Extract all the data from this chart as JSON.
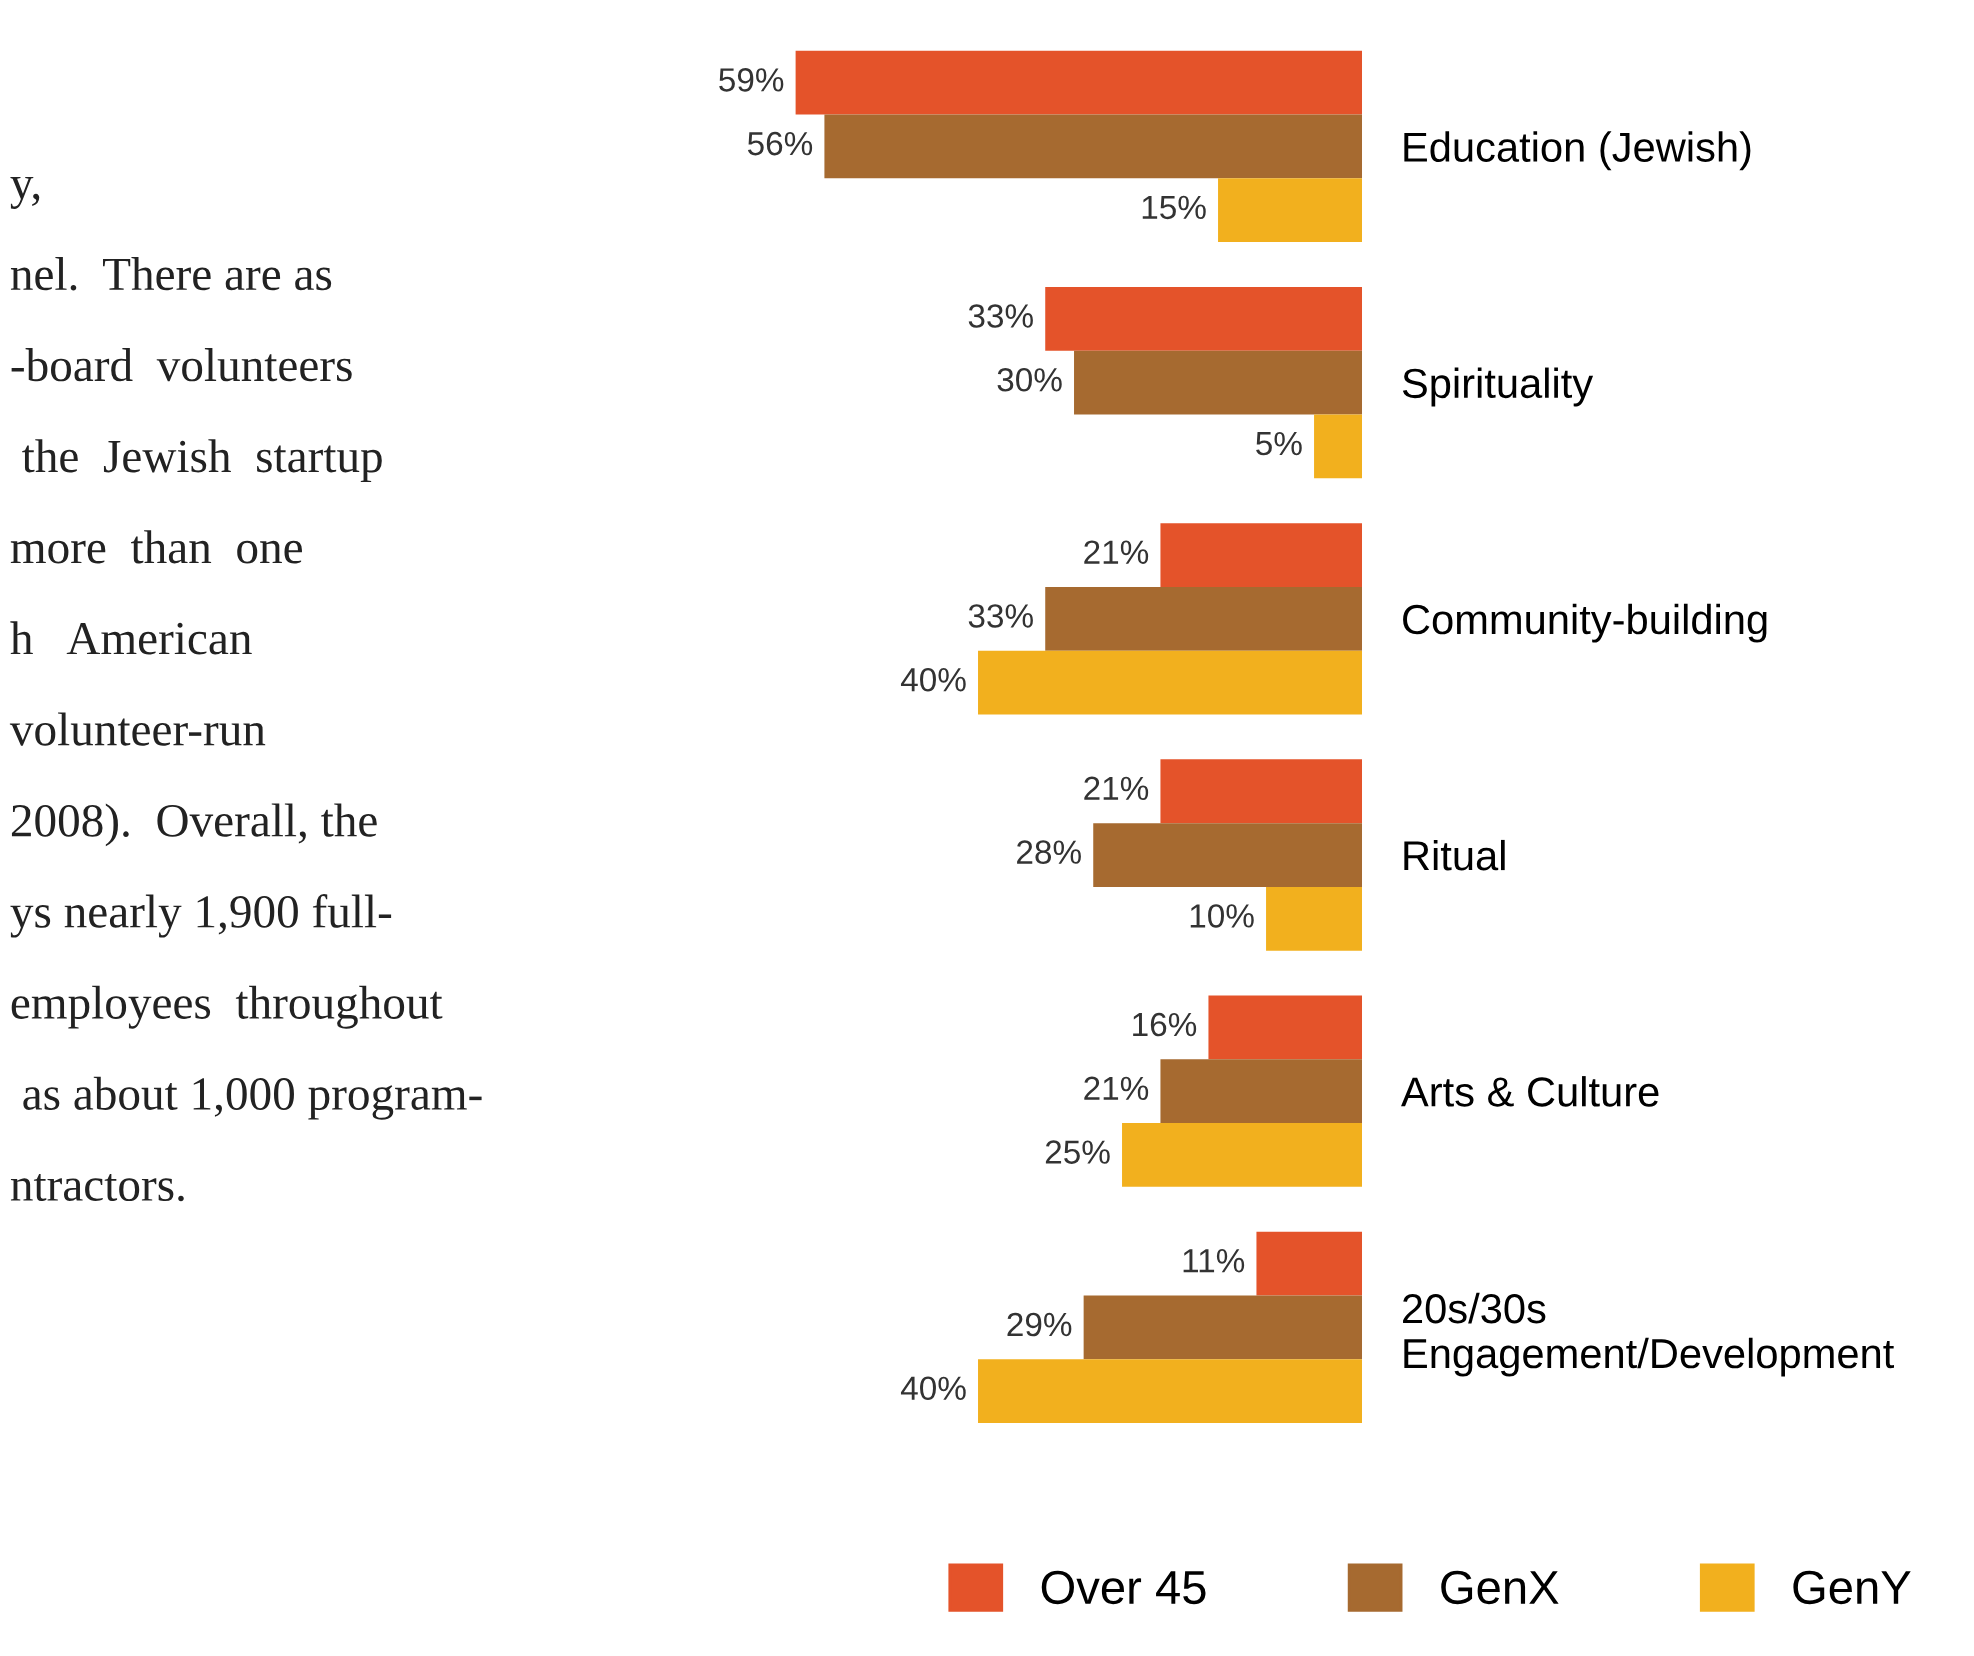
{
  "chart_data": {
    "type": "bar",
    "orientation": "horizontal",
    "legend": "bottom",
    "grid": false,
    "categories": [
      "Education (Jewish)",
      "Spirituality",
      "Community-building",
      "Ritual",
      "Arts & Culture",
      "20s/30s\nEngagement/Development"
    ],
    "series": [
      {
        "name": "Over 45",
        "color": "#e4532a",
        "values": [
          59,
          33,
          21,
          21,
          16,
          11
        ],
        "value_labels": [
          "59%",
          "33%",
          "21%",
          "21%",
          "16%",
          "11%"
        ]
      },
      {
        "name": "GenX",
        "color": "#a66a30",
        "values": [
          56,
          30,
          33,
          28,
          21,
          29
        ],
        "value_labels": [
          "56%",
          "30%",
          "33%",
          "28%",
          "21%",
          "29%"
        ]
      },
      {
        "name": "GenY",
        "color": "#f2b01e",
        "values": [
          15,
          5,
          40,
          10,
          25,
          40
        ],
        "value_labels": [
          "15%",
          "5%",
          "40%",
          "10%",
          "25%",
          "40%"
        ]
      }
    ],
    "annotations": [
      "y,",
      "nel.  There are as",
      "-board  volunteers",
      " the  Jewish  startup",
      "more  than  one",
      "h   American",
      "volunteer-run",
      "2008).  Overall, the",
      "ys nearly 1,900 full-",
      "employees  throughout",
      " as about 1,000 program-",
      "ntractors."
    ]
  }
}
